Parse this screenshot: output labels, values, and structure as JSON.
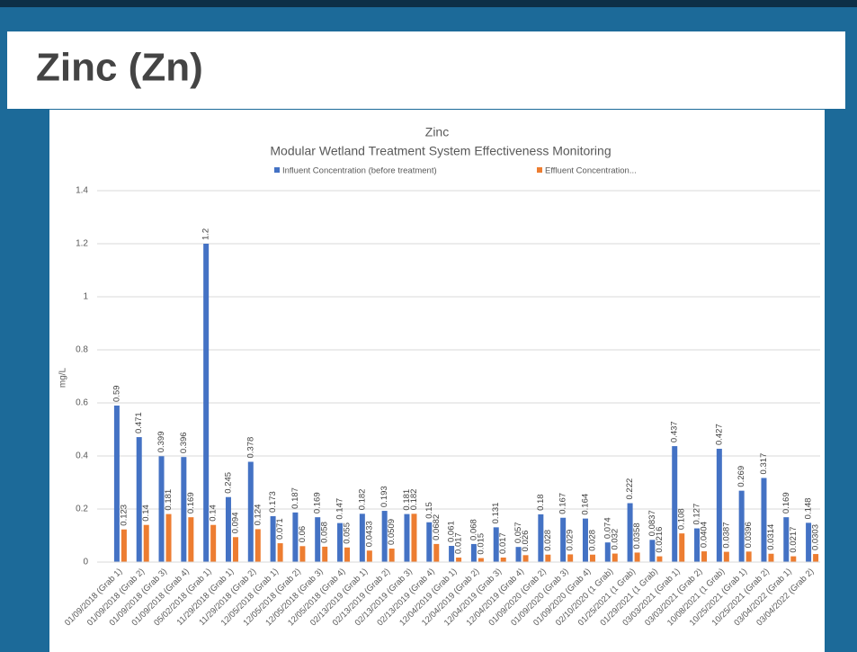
{
  "header": {
    "title": "Zinc (Zn)"
  },
  "chart_data": {
    "type": "bar",
    "title": "Zinc",
    "subtitle": "Modular Wetland Treatment System Effectiveness Monitoring",
    "y_label": "mg/L",
    "categories": [
      "01/09/2018 (Grab 1)",
      "01/09/2018 (Grab 2)",
      "01/09/2018 (Grab 3)",
      "01/09/2018 (Grab 4)",
      "05/02/2018 (Grab 1)",
      "11/29/2018 (Grab 1)",
      "11/29/2018 (Grab 2)",
      "12/05/2018 (Grab 1)",
      "12/05/2018 (Grab 2)",
      "12/05/2018 (Grab 3)",
      "12/05/2018 (Grab 4)",
      "02/13/2019 (Grab 1)",
      "02/13/2019 (Grab 2)",
      "02/13/2019 (Grab 3)",
      "02/13/2019 (Grab 4)",
      "12/04/2019 (Grab 1)",
      "12/04/2019 (Grab 2)",
      "12/04/2019 (Grab 3)",
      "12/04/2019 (Grab 4)",
      "01/09/2020 (Grab 2)",
      "01/09/2020 (Grab 3)",
      "01/09/2020 (Grab 4)",
      "02/10/2020 (1 Grab)",
      "01/25/2021 (1 Grab)",
      "01/29/2021 (1 Grab)",
      "03/03/2021 (Grab 1)",
      "03/03/2021 (Grab 2)",
      "10/08/2021 (1 Grab)",
      "10/25/2021 (Grab 1)",
      "10/25/2021 (Grab 2)",
      "03/04/2022 (Grab 1)",
      "03/04/2022 (Grab 2)"
    ],
    "series": [
      {
        "name": "Influent Concentration (before treatment)",
        "color": "#4472c4",
        "values": [
          0.59,
          0.471,
          0.399,
          0.396,
          1.2,
          0.245,
          0.378,
          0.173,
          0.187,
          0.169,
          0.147,
          0.182,
          0.193,
          0.181,
          0.15,
          0.061,
          0.068,
          0.131,
          0.057,
          0.18,
          0.167,
          0.164,
          0.074,
          0.222,
          0.0837,
          0.437,
          0.127,
          0.427,
          0.269,
          0.317,
          0.169,
          0.148
        ]
      },
      {
        "name": "Effluent Concentration...",
        "color": "#ed7d31",
        "values": [
          0.123,
          0.14,
          0.181,
          0.169,
          0.14,
          0.094,
          0.124,
          0.071,
          0.06,
          0.058,
          0.055,
          0.0433,
          0.0509,
          0.182,
          0.0682,
          0.017,
          0.015,
          0.017,
          0.026,
          0.028,
          0.029,
          0.028,
          0.032,
          0.0358,
          0.0216,
          0.108,
          0.0404,
          0.0387,
          0.0396,
          0.0314,
          0.0217,
          0.0303
        ]
      }
    ],
    "ylim": [
      0,
      1.4
    ],
    "yticks": [
      0,
      0.2,
      0.4,
      0.6,
      0.8,
      1,
      1.2,
      1.4
    ],
    "grid": true,
    "legend": "top"
  }
}
